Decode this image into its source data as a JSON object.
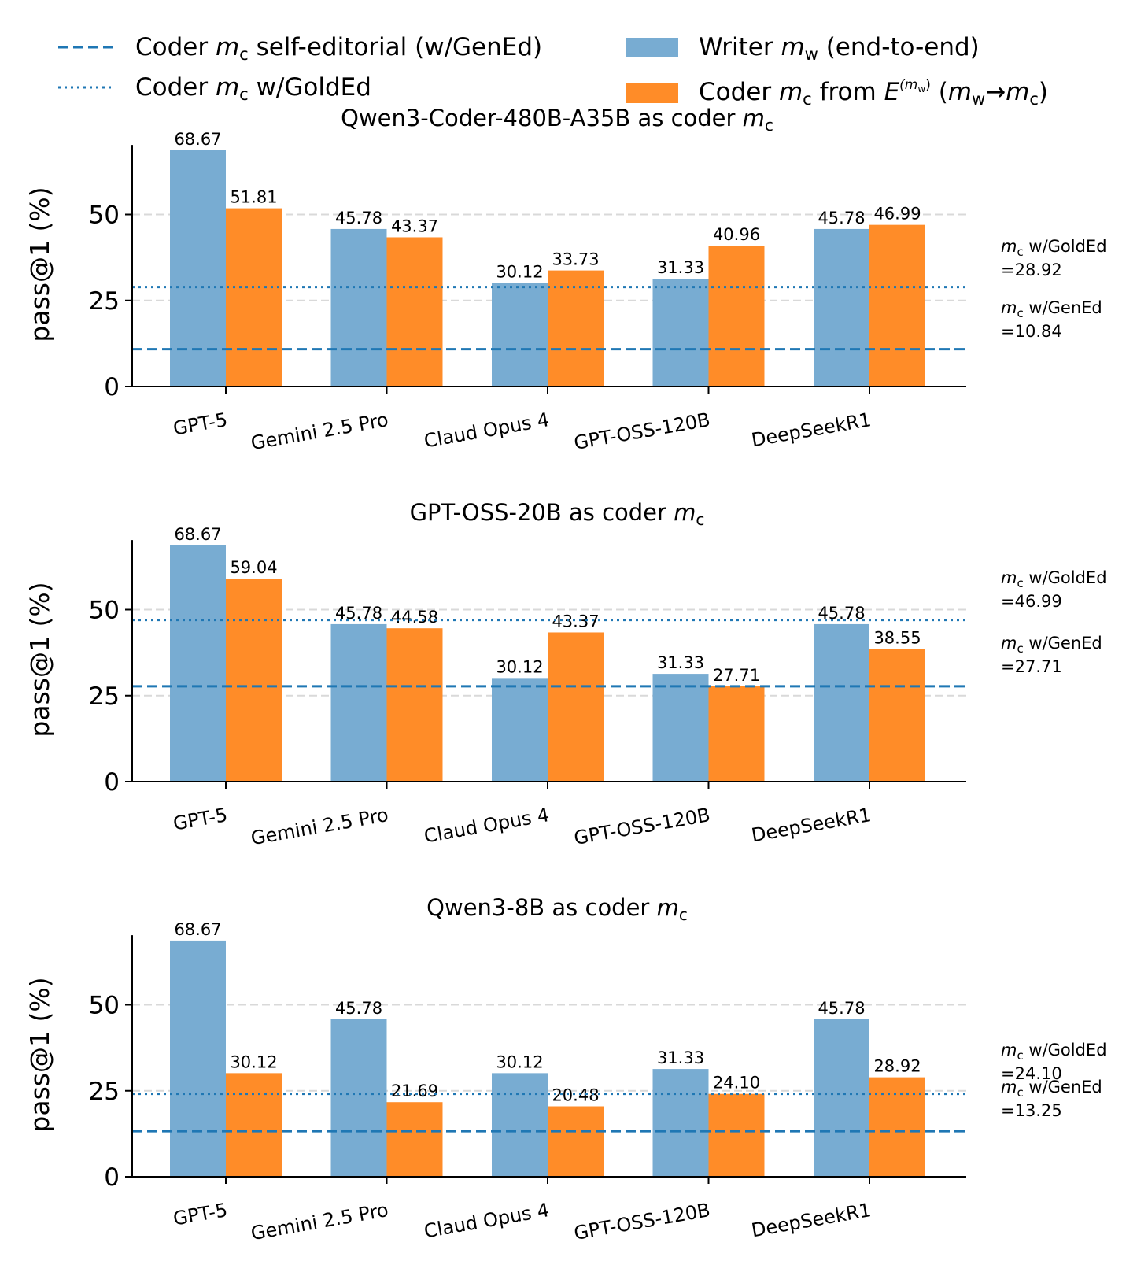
{
  "colors": {
    "writer": "#78acd2",
    "coder": "#ff8c28",
    "ref_line": "#1f77b4",
    "grid": "#d9d9d9",
    "axis": "#000000"
  },
  "legend": {
    "geneditorial_pre": "Coder ",
    "geneditorial_post": " self-editorial (w/GenEd)",
    "goldeditorial_pre": "Coder ",
    "goldeditorial_post": " w/GoldEd",
    "writer_pre": "Writer ",
    "writer_post": " (end-to-end)",
    "coder_pre": "Coder ",
    "coder_mid": " from ",
    "coder_post": " (",
    "coder_arrow": "→",
    "coder_end": ")",
    "m": "m",
    "sub_c": "c",
    "sub_w": "w",
    "E": "E",
    "E_sup": "(m",
    "E_sup_end": ")"
  },
  "chart_data": [
    {
      "type": "bar",
      "title_prefix": "Qwen3-Coder-480B-A35B as coder ",
      "ylabel": "pass@1 (%)",
      "ylim": [
        0,
        70
      ],
      "yticks": [
        "0",
        "25",
        "50"
      ],
      "grid": "horizontal dashed",
      "categories": [
        "GPT-5",
        "Gemini 2.5 Pro",
        "Claud Opus 4",
        "GPT-OSS-120B",
        "DeepSeekR1"
      ],
      "series": [
        {
          "name": "Writer m_w (end-to-end)",
          "values": [
            68.67,
            45.78,
            30.12,
            31.33,
            45.78
          ],
          "labels": [
            "68.67",
            "45.78",
            "30.12",
            "31.33",
            "45.78"
          ]
        },
        {
          "name": "Coder m_c from E(m_w) (m_w→m_c)",
          "values": [
            51.81,
            43.37,
            33.73,
            40.96,
            46.99
          ],
          "labels": [
            "51.81",
            "43.37",
            "33.73",
            "40.96",
            "46.99"
          ]
        }
      ],
      "reference_lines": {
        "gold": 28.92,
        "gen": 10.84
      },
      "notes": {
        "gold_label": " w/GoldEd",
        "gold_value": "=28.92",
        "gen_label": " w/GenEd",
        "gen_value": "=10.84"
      }
    },
    {
      "type": "bar",
      "title_prefix": "GPT-OSS-20B as coder ",
      "ylabel": "pass@1 (%)",
      "ylim": [
        0,
        70
      ],
      "yticks": [
        "0",
        "25",
        "50"
      ],
      "grid": "horizontal dashed",
      "categories": [
        "GPT-5",
        "Gemini 2.5 Pro",
        "Claud Opus 4",
        "GPT-OSS-120B",
        "DeepSeekR1"
      ],
      "series": [
        {
          "name": "Writer m_w (end-to-end)",
          "values": [
            68.67,
            45.78,
            30.12,
            31.33,
            45.78
          ],
          "labels": [
            "68.67",
            "45.78",
            "30.12",
            "31.33",
            "45.78"
          ]
        },
        {
          "name": "Coder m_c from E(m_w) (m_w→m_c)",
          "values": [
            59.04,
            44.58,
            43.37,
            27.71,
            38.55
          ],
          "labels": [
            "59.04",
            "44.58",
            "43.37",
            "27.71",
            "38.55"
          ]
        }
      ],
      "reference_lines": {
        "gold": 46.99,
        "gen": 27.71
      },
      "notes": {
        "gold_label": " w/GoldEd",
        "gold_value": "=46.99",
        "gen_label": " w/GenEd",
        "gen_value": "=27.71"
      }
    },
    {
      "type": "bar",
      "title_prefix": "Qwen3-8B as coder ",
      "ylabel": "pass@1 (%)",
      "ylim": [
        0,
        70
      ],
      "yticks": [
        "0",
        "25",
        "50"
      ],
      "grid": "horizontal dashed",
      "categories": [
        "GPT-5",
        "Gemini 2.5 Pro",
        "Claud Opus 4",
        "GPT-OSS-120B",
        "DeepSeekR1"
      ],
      "series": [
        {
          "name": "Writer m_w (end-to-end)",
          "values": [
            68.67,
            45.78,
            30.12,
            31.33,
            45.78
          ],
          "labels": [
            "68.67",
            "45.78",
            "30.12",
            "31.33",
            "45.78"
          ]
        },
        {
          "name": "Coder m_c from E(m_w) (m_w→m_c)",
          "values": [
            30.12,
            21.69,
            20.48,
            24.1,
            28.92
          ],
          "labels": [
            "30.12",
            "21.69",
            "20.48",
            "24.10",
            "28.92"
          ]
        }
      ],
      "reference_lines": {
        "gold": 24.1,
        "gen": 13.25
      },
      "notes": {
        "gold_label": " w/GoldEd",
        "gold_value": "=24.10",
        "gen_label": " w/GenEd",
        "gen_value": "=13.25"
      }
    }
  ]
}
